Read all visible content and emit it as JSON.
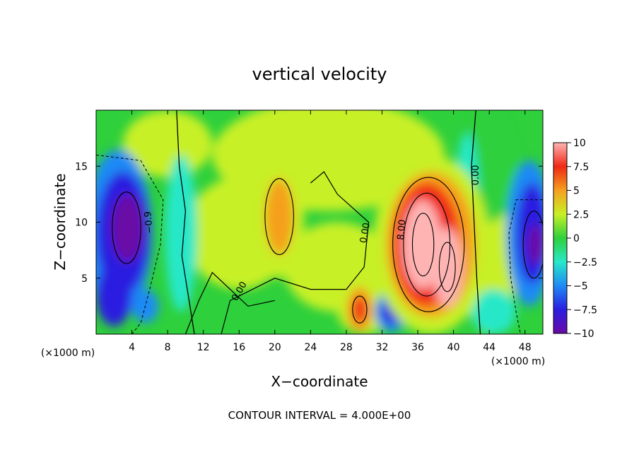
{
  "chart_data": {
    "type": "heatmap",
    "title": "vertical velocity",
    "xlabel": "X−coordinate",
    "ylabel": "Z−coordinate",
    "x_unit_left": "(×1000 m)",
    "x_unit_right": "(×1000 m)",
    "footer": "CONTOUR INTERVAL = 4.000E+00",
    "xlim": [
      0,
      50
    ],
    "ylim": [
      0,
      20
    ],
    "xticks": [
      4,
      8,
      12,
      16,
      20,
      24,
      28,
      32,
      36,
      40,
      44,
      48
    ],
    "yticks": [
      5,
      10,
      15
    ],
    "colorbar": {
      "range": [
        -10,
        10
      ],
      "ticks": [
        10,
        7.5,
        5,
        2.5,
        0,
        -2.5,
        -5,
        -7.5,
        -10
      ],
      "tick_labels": [
        "10",
        "7.5",
        "5",
        "2.5",
        "0",
        "−2.5",
        "−5",
        "−7.5",
        "−10"
      ]
    },
    "contour_labels": [
      "0.00",
      "0.00",
      "0.00",
      "0.00",
      "8.00",
      "0.00",
      "−0.9"
    ],
    "features": [
      {
        "x": 36.5,
        "z": 8,
        "peak": 10
      },
      {
        "x": 39,
        "z": 6,
        "peak": 9
      },
      {
        "x": 20.5,
        "z": 10.5,
        "peak": 4.5
      },
      {
        "x": 29.5,
        "z": 2,
        "peak": 6
      },
      {
        "x": 33,
        "z": 2,
        "peak": -7
      },
      {
        "x": 3.5,
        "z": 9.5,
        "peak": -10
      },
      {
        "x": 49,
        "z": 8,
        "peak": -10
      }
    ],
    "colors": {
      "m10": "#6a0aa6",
      "m75": "#2a1ee0",
      "m5": "#1e8af5",
      "m25": "#28e8c8",
      "z": "#2ed03c",
      "p25": "#c8f028",
      "p5": "#f5a01e",
      "p75": "#f02814",
      "p10": "#ffb4b4"
    }
  }
}
